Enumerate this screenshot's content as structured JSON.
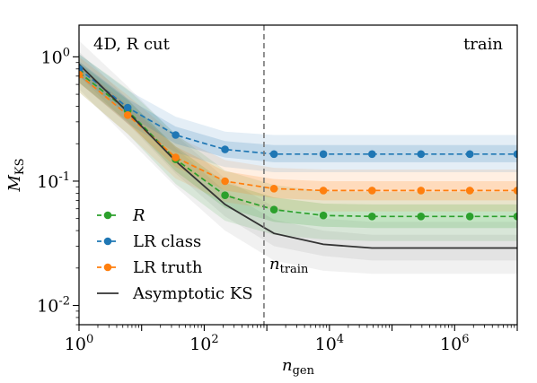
{
  "chart_data": {
    "type": "line",
    "annotation_left": "4D, R cut",
    "annotation_right": "train",
    "xlabel": "n_gen",
    "ylabel": "M_KS",
    "xscale": "log",
    "yscale": "log",
    "xlim": [
      1,
      10000000.0
    ],
    "ylim": [
      0.007,
      1.8
    ],
    "x_ticks": [
      1,
      100,
      10000,
      1000000
    ],
    "y_ticks": [
      0.01,
      0.1,
      1
    ],
    "vline": {
      "x": 900,
      "label": "n_train"
    },
    "series": [
      {
        "name": "R",
        "color": "#2ca02c",
        "style": "dashed-markers",
        "x": [
          1,
          6,
          35,
          215,
          1300,
          8000,
          48000,
          290000,
          1750000,
          10000000
        ],
        "y": [
          0.75,
          0.37,
          0.15,
          0.077,
          0.059,
          0.053,
          0.052,
          0.052,
          0.052,
          0.052
        ],
        "band_inner": [
          [
            0.62,
            0.9
          ],
          [
            0.3,
            0.45
          ],
          [
            0.12,
            0.19
          ],
          [
            0.061,
            0.097
          ],
          [
            0.047,
            0.074
          ],
          [
            0.043,
            0.066
          ],
          [
            0.042,
            0.065
          ],
          [
            0.042,
            0.065
          ],
          [
            0.042,
            0.065
          ],
          [
            0.042,
            0.065
          ]
        ],
        "band_outer": [
          [
            0.52,
            1.05
          ],
          [
            0.24,
            0.55
          ],
          [
            0.095,
            0.24
          ],
          [
            0.048,
            0.122
          ],
          [
            0.037,
            0.093
          ],
          [
            0.034,
            0.083
          ],
          [
            0.033,
            0.082
          ],
          [
            0.033,
            0.082
          ],
          [
            0.033,
            0.082
          ],
          [
            0.033,
            0.082
          ]
        ]
      },
      {
        "name": "LR class",
        "color": "#1f77b4",
        "style": "dashed-markers",
        "x": [
          1,
          6,
          35,
          215,
          1300,
          8000,
          48000,
          290000,
          1750000,
          10000000
        ],
        "y": [
          0.8,
          0.39,
          0.235,
          0.18,
          0.165,
          0.165,
          0.165,
          0.165,
          0.165,
          0.165
        ],
        "band_inner": [
          [
            0.7,
            0.92
          ],
          [
            0.34,
            0.46
          ],
          [
            0.2,
            0.275
          ],
          [
            0.155,
            0.21
          ],
          [
            0.142,
            0.195
          ],
          [
            0.142,
            0.195
          ],
          [
            0.142,
            0.195
          ],
          [
            0.142,
            0.195
          ],
          [
            0.142,
            0.195
          ],
          [
            0.142,
            0.195
          ]
        ],
        "band_outer": [
          [
            0.62,
            1.05
          ],
          [
            0.29,
            0.54
          ],
          [
            0.17,
            0.33
          ],
          [
            0.13,
            0.25
          ],
          [
            0.118,
            0.235
          ],
          [
            0.118,
            0.235
          ],
          [
            0.118,
            0.235
          ],
          [
            0.118,
            0.235
          ],
          [
            0.118,
            0.235
          ],
          [
            0.118,
            0.235
          ]
        ]
      },
      {
        "name": "LR truth",
        "color": "#ff7f0e",
        "style": "dashed-markers",
        "x": [
          1,
          6,
          35,
          215,
          1300,
          8000,
          48000,
          290000,
          1750000,
          10000000
        ],
        "y": [
          0.72,
          0.34,
          0.155,
          0.1,
          0.087,
          0.084,
          0.084,
          0.084,
          0.084,
          0.084
        ],
        "band_inner": [
          [
            0.62,
            0.85
          ],
          [
            0.29,
            0.41
          ],
          [
            0.13,
            0.19
          ],
          [
            0.084,
            0.12
          ],
          [
            0.073,
            0.104
          ],
          [
            0.07,
            0.1
          ],
          [
            0.07,
            0.1
          ],
          [
            0.07,
            0.1
          ],
          [
            0.07,
            0.1
          ],
          [
            0.07,
            0.1
          ]
        ],
        "band_outer": [
          [
            0.52,
            1.0
          ],
          [
            0.24,
            0.49
          ],
          [
            0.105,
            0.23
          ],
          [
            0.068,
            0.148
          ],
          [
            0.059,
            0.128
          ],
          [
            0.057,
            0.124
          ],
          [
            0.057,
            0.124
          ],
          [
            0.057,
            0.124
          ],
          [
            0.057,
            0.124
          ],
          [
            0.057,
            0.124
          ]
        ]
      },
      {
        "name": "Asymptotic KS",
        "color": "#333333",
        "style": "solid",
        "x": [
          1,
          6,
          35,
          215,
          1300,
          8000,
          48000,
          290000,
          1750000,
          10000000
        ],
        "y": [
          0.87,
          0.36,
          0.145,
          0.065,
          0.038,
          0.031,
          0.029,
          0.029,
          0.029,
          0.029
        ],
        "band_inner": [
          [
            0.7,
            1.1
          ],
          [
            0.29,
            0.46
          ],
          [
            0.115,
            0.185
          ],
          [
            0.052,
            0.083
          ],
          [
            0.03,
            0.049
          ],
          [
            0.025,
            0.04
          ],
          [
            0.023,
            0.037
          ],
          [
            0.023,
            0.037
          ],
          [
            0.023,
            0.037
          ],
          [
            0.023,
            0.037
          ]
        ],
        "band_outer": [
          [
            0.55,
            1.35
          ],
          [
            0.22,
            0.58
          ],
          [
            0.09,
            0.235
          ],
          [
            0.04,
            0.105
          ],
          [
            0.023,
            0.062
          ],
          [
            0.019,
            0.05
          ],
          [
            0.018,
            0.047
          ],
          [
            0.018,
            0.047
          ],
          [
            0.018,
            0.047
          ],
          [
            0.018,
            0.047
          ]
        ]
      }
    ],
    "legend": {
      "position": "lower-left",
      "entries": [
        "R",
        "LR class",
        "LR truth",
        "Asymptotic KS"
      ]
    }
  }
}
